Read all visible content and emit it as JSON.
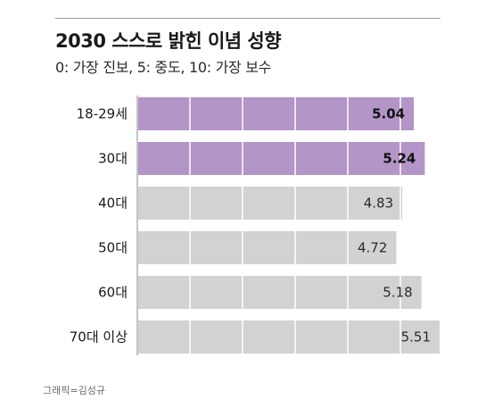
{
  "header": {
    "title": "2030 스스로 밝힌 이념 성향",
    "subtitle": "0: 가장 진보, 5: 중도, 10: 가장 보수"
  },
  "footer": {
    "credit": "그래픽=김성규"
  },
  "colors": {
    "highlight": "#b395c7",
    "normal": "#d2d2d2",
    "divider": "#ffffff",
    "text": "#1a1a1a"
  },
  "chart_data": {
    "type": "bar",
    "orientation": "horizontal",
    "categories": [
      "18-29세",
      "30대",
      "40대",
      "50대",
      "60대",
      "70대 이상"
    ],
    "values": [
      5.04,
      5.24,
      4.83,
      4.72,
      5.18,
      5.51
    ],
    "value_labels": [
      "5.04",
      "5.24",
      "4.83",
      "4.72",
      "5.18",
      "5.51"
    ],
    "highlighted": [
      true,
      true,
      false,
      false,
      false,
      false
    ],
    "xlim": [
      0,
      5.51
    ],
    "grid": true
  }
}
